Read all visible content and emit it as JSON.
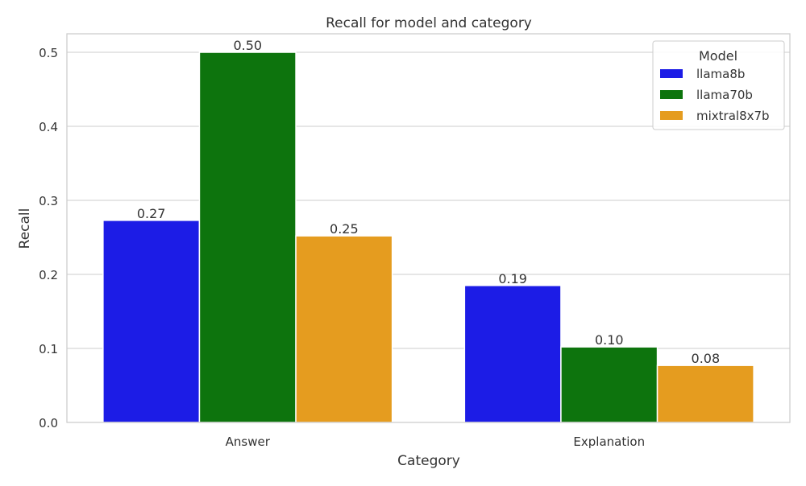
{
  "chart_data": {
    "type": "bar",
    "title": "Recall for model and category",
    "xlabel": "Category",
    "ylabel": "Recall",
    "categories": [
      "Answer",
      "Explanation"
    ],
    "series": [
      {
        "name": "llama8b",
        "color": "#1c1ce6",
        "values": [
          0.273,
          0.185
        ],
        "labels": [
          "0.27",
          "0.19"
        ]
      },
      {
        "name": "llama70b",
        "color": "#0d740d",
        "values": [
          0.5,
          0.102
        ],
        "labels": [
          "0.50",
          "0.10"
        ]
      },
      {
        "name": "mixtral8x7b",
        "color": "#e59c1f",
        "values": [
          0.252,
          0.077
        ],
        "labels": [
          "0.25",
          "0.08"
        ]
      }
    ],
    "ylim": [
      0,
      0.525
    ],
    "yticks": [
      0.0,
      0.1,
      0.2,
      0.3,
      0.4,
      0.5
    ],
    "ytick_labels": [
      "0.0",
      "0.1",
      "0.2",
      "0.3",
      "0.4",
      "0.5"
    ],
    "grid": true,
    "legend": {
      "title": "Model",
      "position": "top-right"
    }
  }
}
